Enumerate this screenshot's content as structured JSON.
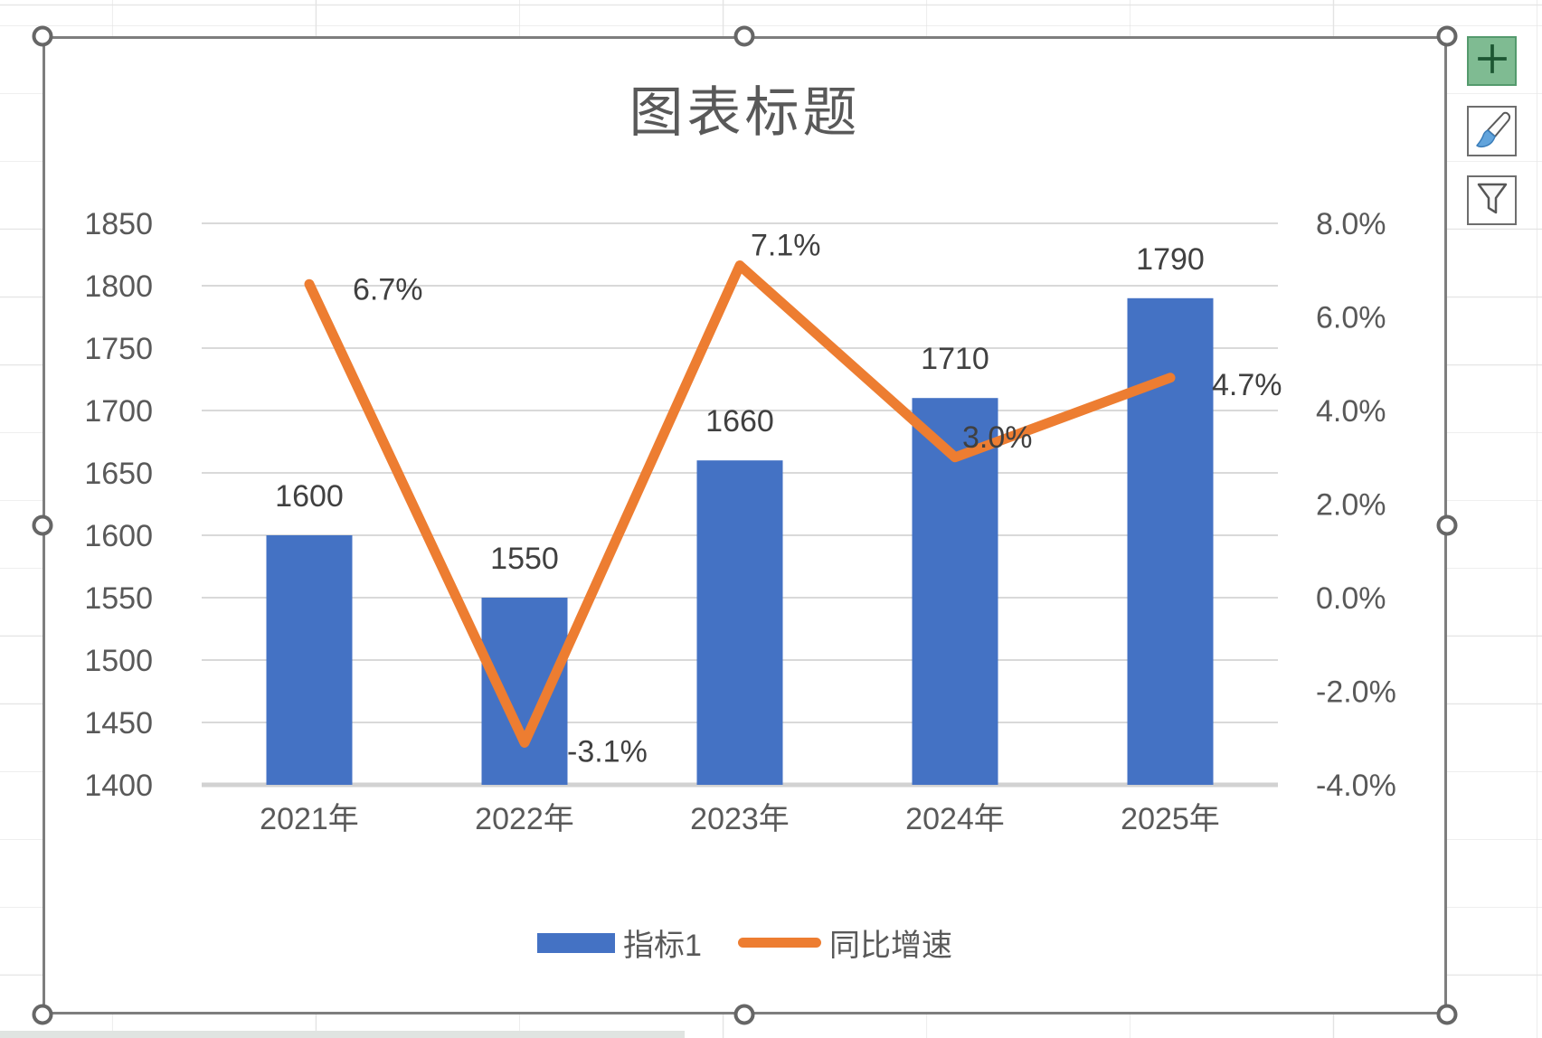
{
  "chart_data": {
    "type": "combo",
    "title": "图表标题",
    "categories": [
      "2021年",
      "2022年",
      "2023年",
      "2024年",
      "2025年"
    ],
    "series": [
      {
        "name": "指标1",
        "type": "bar",
        "axis": "left",
        "color": "#4472C4",
        "values": [
          1600,
          1550,
          1660,
          1710,
          1790
        ],
        "labels": [
          "1600",
          "1550",
          "1660",
          "1710",
          "1790"
        ]
      },
      {
        "name": "同比增速",
        "type": "line",
        "axis": "right",
        "color": "#ED7D31",
        "values": [
          6.7,
          -3.1,
          7.1,
          3.0,
          4.7
        ],
        "labels": [
          "6.7%",
          "-3.1%",
          "7.1%",
          "3.0%",
          "4.7%"
        ]
      }
    ],
    "left_axis": {
      "min": 1400,
      "max": 1850,
      "step": 50,
      "ticks": [
        "1850",
        "1800",
        "1750",
        "1700",
        "1650",
        "1600",
        "1550",
        "1500",
        "1450",
        "1400"
      ]
    },
    "right_axis": {
      "min": -4,
      "max": 8,
      "step": 2,
      "ticks": [
        "8.0%",
        "6.0%",
        "4.0%",
        "2.0%",
        "0.0%",
        "-2.0%",
        "-4.0%"
      ]
    },
    "grid": true,
    "legend_position": "bottom"
  },
  "colors": {
    "bar": "#4472C4",
    "line": "#ED7D31",
    "gridline": "#D9D9D9",
    "axis_line": "#D2D2D2",
    "axis_text": "#595959",
    "data_label_text": "#404040",
    "title_text": "#595959",
    "frame_border": "#7E7E7E"
  },
  "toolbar": {
    "buttons": [
      {
        "icon": "plus-icon",
        "meaning": "chart-elements"
      },
      {
        "icon": "paintbrush-icon",
        "meaning": "chart-styles"
      },
      {
        "icon": "funnel-icon",
        "meaning": "chart-filters"
      }
    ]
  }
}
